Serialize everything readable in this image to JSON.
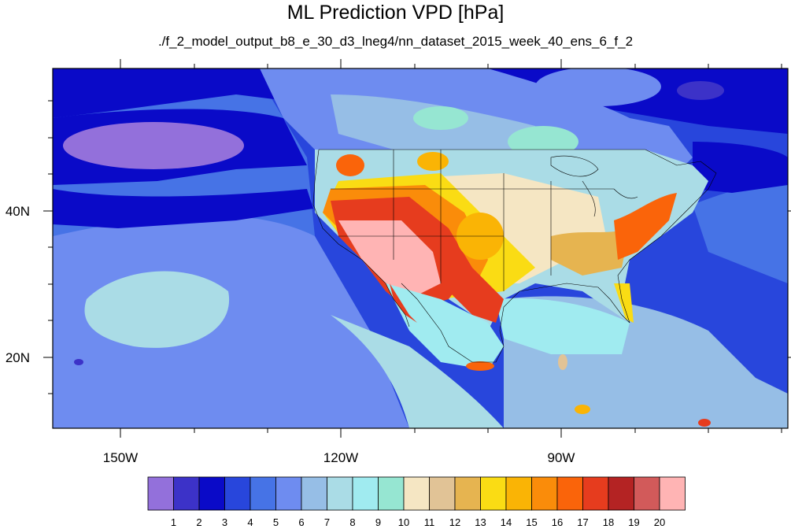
{
  "title": "ML Prediction VPD [hPa]",
  "subtitle": "./f_2_model_output_b8_e_30_d3_lneg4/nn_dataset_2015_week_40_ens_6_f_2",
  "axes": {
    "x_ticks": [
      "150W",
      "120W",
      "90W"
    ],
    "y_ticks": [
      "40N",
      "20N"
    ]
  },
  "colorbar": {
    "labels": [
      "1",
      "2",
      "3",
      "4",
      "5",
      "6",
      "7",
      "8",
      "9",
      "10",
      "11",
      "12",
      "13",
      "14",
      "15",
      "16",
      "17",
      "18",
      "19",
      "20"
    ],
    "colors": [
      "#9370db",
      "#3c32c8",
      "#0a0ac8",
      "#2846dc",
      "#4673e6",
      "#6e8cf0",
      "#96bee6",
      "#aadce6",
      "#a0ebf0",
      "#96e6d2",
      "#f5e6c3",
      "#e1c396",
      "#e6b450",
      "#fadc14",
      "#fab405",
      "#fa8c0a",
      "#fa640a",
      "#e63c1e",
      "#b42323",
      "#d25a5a",
      "#ffb4b4"
    ]
  },
  "map": {
    "ocean_color": "#6e8cf0",
    "land_color": "#aadce6"
  }
}
